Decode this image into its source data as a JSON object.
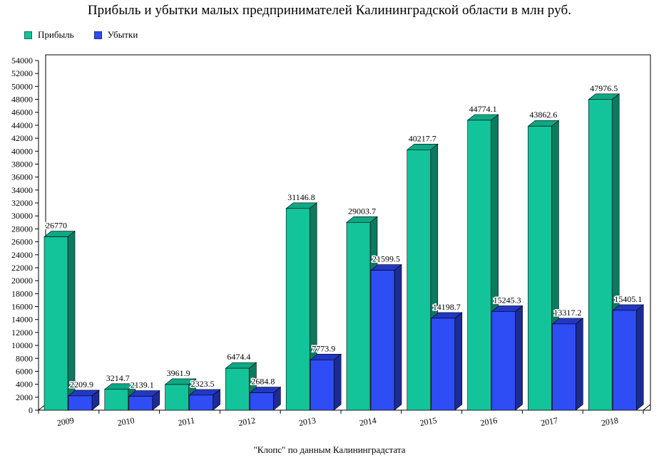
{
  "chart_data": {
    "type": "bar",
    "title": "Прибыль и убытки малых предпринимателей Калининградской области в млн руб.",
    "source": "\"Клопс\" по данным Калининградстата",
    "categories": [
      "2009",
      "2010",
      "2011",
      "2012",
      "2013",
      "2014",
      "2015",
      "2016",
      "2017",
      "2018"
    ],
    "series": [
      {
        "name": "Прибыль",
        "values": [
          26770,
          3214.7,
          3961.9,
          6474.4,
          31146.8,
          29003.7,
          40217.7,
          44774.1,
          43862.6,
          47976.5
        ],
        "labels": [
          "26770",
          "3214.7",
          "3961.9",
          "6474.4",
          "31146.8",
          "29003.7",
          "40217.7",
          "44774.1",
          "43862.6",
          "47976.5"
        ],
        "color": "#13c49a",
        "side_color": "#0b7a5f",
        "top_color": "#0ea884"
      },
      {
        "name": "Убытки",
        "values": [
          2209.9,
          2139.1,
          2323.5,
          2684.8,
          7773.9,
          21599.5,
          14198.7,
          15245.3,
          13317.2,
          15405.1
        ],
        "labels": [
          "2209.9",
          "2139.1",
          "2323.5",
          "2684.8",
          "7773.9",
          "21599.5",
          "14198.7",
          "15245.3",
          "13317.2",
          "15405.1"
        ],
        "color": "#2f4df5",
        "side_color": "#1c2c94",
        "top_color": "#2238c4"
      }
    ],
    "ylim": [
      0,
      54000
    ],
    "yticks": [
      "0",
      "2000",
      "4000",
      "6000",
      "8000",
      "10000",
      "12000",
      "14000",
      "16000",
      "18000",
      "20000",
      "22000",
      "24000",
      "26000",
      "28000",
      "30000",
      "32000",
      "34000",
      "36000",
      "38000",
      "40000",
      "42000",
      "44000",
      "46000",
      "48000",
      "50000",
      "52000",
      "54000"
    ],
    "legend_position": "top-left",
    "grid": false
  }
}
